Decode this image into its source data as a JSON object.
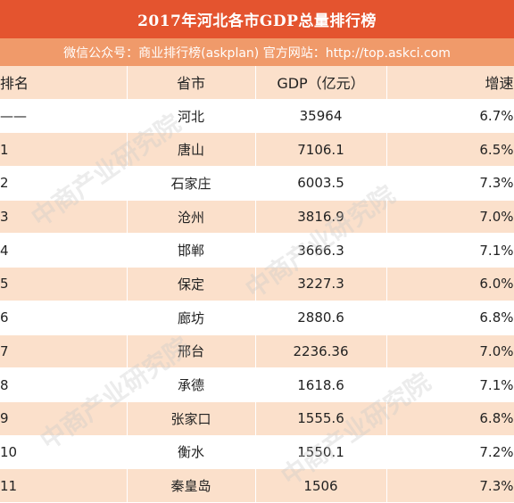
{
  "title": "2017年河北各市GDP总量排行榜",
  "subtitle": "微信公众号：商业排行榜(askplan)  官方网站：http://top.askci.com",
  "columns": [
    "排名",
    "省市",
    "GDP（亿元）",
    "增速"
  ],
  "rows": [
    {
      "rank": "——",
      "city": "河北",
      "gdp": "35964",
      "growth": "6.7%"
    },
    {
      "rank": "1",
      "city": "唐山",
      "gdp": "7106.1",
      "growth": "6.5%"
    },
    {
      "rank": "2",
      "city": "石家庄",
      "gdp": "6003.5",
      "growth": "7.3%"
    },
    {
      "rank": "3",
      "city": "沧州",
      "gdp": "3816.9",
      "growth": "7.0%"
    },
    {
      "rank": "4",
      "city": "邯郸",
      "gdp": "3666.3",
      "growth": "7.1%"
    },
    {
      "rank": "5",
      "city": "保定",
      "gdp": "3227.3",
      "growth": "6.0%"
    },
    {
      "rank": "6",
      "city": "廊坊",
      "gdp": "2880.6",
      "growth": "6.8%"
    },
    {
      "rank": "7",
      "city": "邢台",
      "gdp": "2236.36",
      "growth": "7.0%"
    },
    {
      "rank": "8",
      "city": "承德",
      "gdp": "1618.6",
      "growth": "7.1%"
    },
    {
      "rank": "9",
      "city": "张家口",
      "gdp": "1555.6",
      "growth": "6.8%"
    },
    {
      "rank": "10",
      "city": "衡水",
      "gdp": "1550.1",
      "growth": "7.2%"
    },
    {
      "rank": "11",
      "city": "秦皇岛",
      "gdp": "1506",
      "growth": "7.3%"
    }
  ],
  "watermark": {
    "text": "中商产业研究院"
  },
  "colors": {
    "title_bg": "#e4542f",
    "subtitle_bg": "#f09a6a",
    "row_stripe": "#fbe0cb"
  }
}
